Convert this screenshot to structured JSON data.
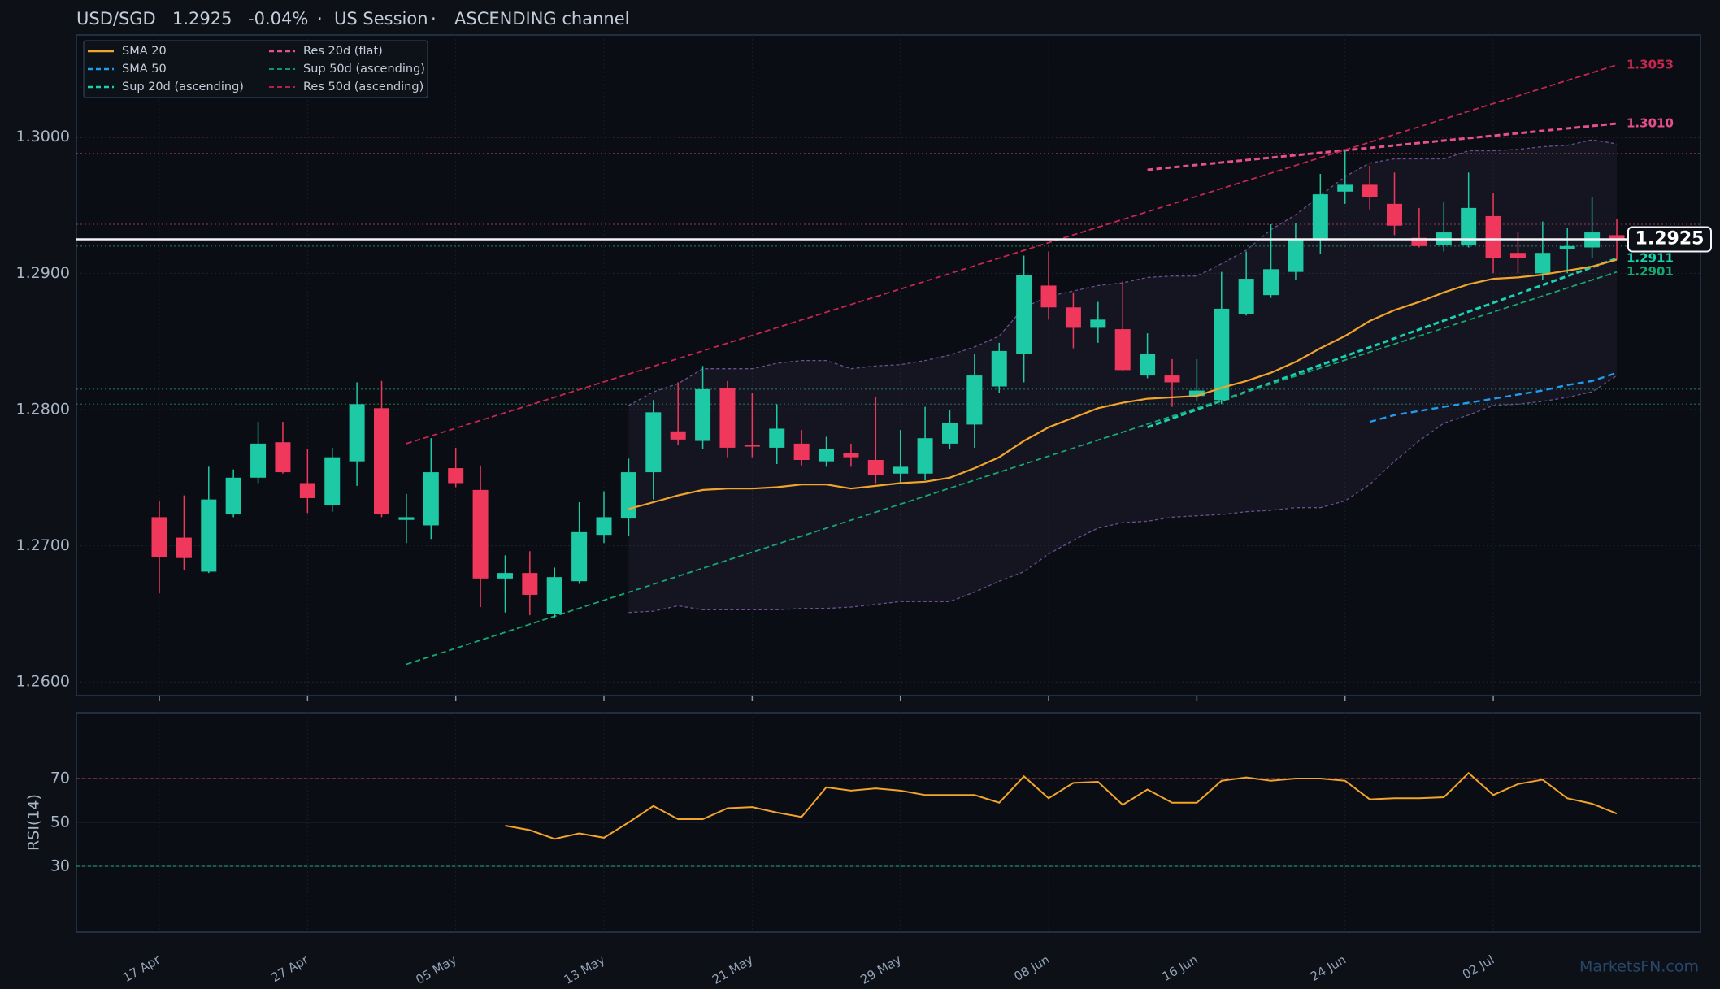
{
  "chart_data": {
    "type": "candlestick",
    "header": {
      "symbol": "USD/SGD",
      "change": "-0.04%",
      "session": "US Session",
      "channel": "ASCENDING channel",
      "separator": "·"
    },
    "last_price": 1.2925,
    "categories": [
      "17 Apr",
      null,
      null,
      null,
      null,
      null,
      "27 Apr",
      null,
      null,
      null,
      null,
      null,
      "05 May",
      null,
      null,
      null,
      null,
      null,
      "13 May",
      null,
      null,
      null,
      null,
      null,
      "21 May",
      null,
      null,
      null,
      null,
      null,
      "29 May",
      null,
      null,
      null,
      null,
      null,
      "08 Jun",
      null,
      null,
      null,
      null,
      null,
      "16 Jun",
      null,
      null,
      null,
      null,
      null,
      "24 Jun",
      null,
      null,
      null,
      null,
      null,
      "02 Jul",
      null,
      null,
      null,
      null,
      null
    ],
    "open": [
      1.2721,
      1.2706,
      1.2681,
      1.2723,
      1.275,
      1.2776,
      1.2746,
      1.273,
      1.2762,
      1.2801,
      1.2719,
      1.2715,
      1.2757,
      1.2741,
      1.2676,
      1.268,
      1.265,
      1.2674,
      1.2708,
      1.272,
      1.2754,
      1.2784,
      1.2777,
      1.2816,
      1.2774,
      1.2772,
      1.2775,
      1.2762,
      1.2768,
      1.2763,
      1.2753,
      1.2753,
      1.2775,
      1.2789,
      1.2817,
      1.2841,
      1.2891,
      1.2875,
      1.286,
      1.2859,
      1.2825,
      1.2825,
      1.281,
      1.2807,
      1.287,
      1.2884,
      1.2901,
      1.2925,
      1.296,
      1.2965,
      1.2951,
      1.2926,
      1.2921,
      1.2921,
      1.2942,
      1.2915,
      1.29,
      1.2918,
      1.2919,
      1.2928
    ],
    "high": [
      1.2733,
      1.2737,
      1.2758,
      1.2756,
      1.2791,
      1.2791,
      1.2771,
      1.2772,
      1.282,
      1.2821,
      1.2738,
      1.2779,
      1.2772,
      1.2759,
      1.2693,
      1.2696,
      1.2684,
      1.2732,
      1.274,
      1.2764,
      1.2807,
      1.282,
      1.2832,
      1.2821,
      1.2812,
      1.2804,
      1.2785,
      1.278,
      1.2775,
      1.2809,
      1.2785,
      1.2802,
      1.28,
      1.2841,
      1.2849,
      1.2913,
      1.2916,
      1.2886,
      1.2879,
      1.2894,
      1.2856,
      1.2837,
      1.2837,
      1.2901,
      1.2916,
      1.2936,
      1.2937,
      1.2973,
      1.299,
      1.2979,
      1.2974,
      1.2948,
      1.2952,
      1.2974,
      1.2959,
      1.293,
      1.2938,
      1.2933,
      1.2956,
      1.294
    ],
    "low": [
      1.2665,
      1.2682,
      1.268,
      1.2721,
      1.2746,
      1.2753,
      1.2724,
      1.2725,
      1.2744,
      1.2721,
      1.2702,
      1.2705,
      1.2743,
      1.2655,
      1.2651,
      1.2649,
      1.2647,
      1.2672,
      1.2702,
      1.2707,
      1.2734,
      1.2774,
      1.2771,
      1.2765,
      1.2765,
      1.276,
      1.2759,
      1.2758,
      1.2758,
      1.2746,
      1.2746,
      1.2748,
      1.2771,
      1.2772,
      1.2812,
      1.282,
      1.2866,
      1.2845,
      1.2849,
      1.2828,
      1.2823,
      1.2802,
      1.2806,
      1.2804,
      1.2869,
      1.2882,
      1.2895,
      1.2914,
      1.2951,
      1.2947,
      1.2928,
      1.2919,
      1.2916,
      1.2919,
      1.29,
      1.29,
      1.2895,
      1.29,
      1.2911,
      1.291
    ],
    "close": [
      1.2692,
      1.2691,
      1.2734,
      1.275,
      1.2775,
      1.2754,
      1.2735,
      1.2765,
      1.2804,
      1.2723,
      1.2721,
      1.2754,
      1.2746,
      1.2676,
      1.268,
      1.2664,
      1.2677,
      1.271,
      1.2721,
      1.2754,
      1.2798,
      1.2778,
      1.2815,
      1.2772,
      1.2773,
      1.2786,
      1.2763,
      1.2771,
      1.2765,
      1.2752,
      1.2758,
      1.2779,
      1.279,
      1.2825,
      1.2843,
      1.2899,
      1.2875,
      1.286,
      1.2866,
      1.2829,
      1.2841,
      1.282,
      1.2814,
      1.2874,
      1.2896,
      1.2903,
      1.2925,
      1.2958,
      1.2965,
      1.2956,
      1.2935,
      1.292,
      1.293,
      1.2948,
      1.2911,
      1.2911,
      1.2915,
      1.292,
      1.293,
      1.2925
    ],
    "up_color": "#1ec9a6",
    "down_color": "#f0385c",
    "ylim": [
      1.259,
      1.3075
    ],
    "yticks": [
      {
        "value": 1.26,
        "label": "1.2600"
      },
      {
        "value": 1.27,
        "label": "1.2700"
      },
      {
        "value": 1.28,
        "label": "1.2800"
      },
      {
        "value": 1.29,
        "label": "1.2900"
      },
      {
        "value": 1.3,
        "label": "1.3000"
      }
    ],
    "grid": true,
    "legend": "upper left",
    "series": [
      {
        "name": "SMA 20",
        "color": "#f2a52b",
        "style": "solid",
        "width": 2.2,
        "values": [
          null,
          null,
          null,
          null,
          null,
          null,
          null,
          null,
          null,
          null,
          null,
          null,
          null,
          null,
          null,
          null,
          null,
          null,
          null,
          1.2727,
          1.2732,
          1.2737,
          1.2741,
          1.2742,
          1.2742,
          1.2743,
          1.2745,
          1.2745,
          1.2742,
          1.2744,
          1.2746,
          1.2747,
          1.275,
          1.2757,
          1.2765,
          1.2777,
          1.2787,
          1.2794,
          1.2801,
          1.2805,
          1.2808,
          1.2809,
          1.281,
          1.2816,
          1.2821,
          1.2827,
          1.2835,
          1.2845,
          1.2854,
          1.2865,
          1.2873,
          1.2879,
          1.2886,
          1.2892,
          1.2896,
          1.2897,
          1.2899,
          1.2902,
          1.2905,
          1.291
        ]
      },
      {
        "name": "SMA 50",
        "color": "#1f9cf0",
        "style": "dashed",
        "width": 2.4,
        "values": [
          null,
          null,
          null,
          null,
          null,
          null,
          null,
          null,
          null,
          null,
          null,
          null,
          null,
          null,
          null,
          null,
          null,
          null,
          null,
          null,
          null,
          null,
          null,
          null,
          null,
          null,
          null,
          null,
          null,
          null,
          null,
          null,
          null,
          null,
          null,
          null,
          null,
          null,
          null,
          null,
          null,
          null,
          null,
          null,
          null,
          null,
          null,
          null,
          null,
          1.2791,
          1.2796,
          1.2799,
          1.2802,
          1.2805,
          1.2808,
          1.2811,
          1.2814,
          1.2818,
          1.2821,
          1.2827
        ]
      }
    ],
    "band": {
      "color": "#6c4f8f",
      "upper": [
        null,
        null,
        null,
        null,
        null,
        null,
        null,
        null,
        null,
        null,
        null,
        null,
        null,
        null,
        null,
        null,
        null,
        null,
        null,
        1.2803,
        1.2813,
        1.2819,
        1.283,
        1.283,
        1.283,
        1.2834,
        1.2836,
        1.2836,
        1.283,
        1.2832,
        1.2833,
        1.2836,
        1.284,
        1.2846,
        1.2854,
        1.2875,
        1.2883,
        1.2887,
        1.2891,
        1.2893,
        1.2897,
        1.2898,
        1.2898,
        1.2907,
        1.2917,
        1.2932,
        1.2943,
        1.2957,
        1.2971,
        1.2981,
        1.2984,
        1.2984,
        1.2984,
        1.299,
        1.299,
        1.2991,
        1.2993,
        1.2994,
        1.2998,
        1.2995
      ],
      "lower": [
        null,
        null,
        null,
        null,
        null,
        null,
        null,
        null,
        null,
        null,
        null,
        null,
        null,
        null,
        null,
        null,
        null,
        null,
        null,
        1.2651,
        1.2652,
        1.2656,
        1.2653,
        1.2653,
        1.2653,
        1.2653,
        1.2654,
        1.2654,
        1.2655,
        1.2657,
        1.2659,
        1.2659,
        1.2659,
        1.2666,
        1.2674,
        1.2681,
        1.2694,
        1.2704,
        1.2713,
        1.2717,
        1.2718,
        1.2721,
        1.2722,
        1.2723,
        1.2725,
        1.2726,
        1.2728,
        1.2728,
        1.2733,
        1.2745,
        1.2762,
        1.2777,
        1.279,
        1.2796,
        1.2803,
        1.2804,
        1.2806,
        1.2809,
        1.2813,
        1.2825
      ]
    },
    "lines": [
      {
        "name": "Sup 20d (ascending)",
        "color": "#19d2b0",
        "width": 3,
        "x": [
          40,
          59
        ],
        "values": [
          1.2787,
          1.2911
        ],
        "end_label": "1.2911"
      },
      {
        "name": "Res 20d (flat)",
        "color": "#e8508c",
        "width": 3,
        "x": [
          40,
          59
        ],
        "values": [
          1.2976,
          1.301
        ],
        "end_label": "1.3010"
      },
      {
        "name": "Sup 50d (ascending)",
        "color": "#15a872",
        "width": 1.8,
        "x": [
          10,
          59
        ],
        "values": [
          1.2613,
          1.2901
        ],
        "end_label": "1.2901"
      },
      {
        "name": "Res 50d (ascending)",
        "color": "#c8264e",
        "width": 1.8,
        "x": [
          10,
          59
        ],
        "values": [
          1.2775,
          1.3053
        ],
        "end_label": "1.3053"
      }
    ],
    "levels": {
      "resistance": {
        "color": "#a8354f",
        "values": [
          1.3,
          1.2988,
          1.2936
        ]
      },
      "support": {
        "color": "#1e7a55",
        "values": [
          1.292,
          1.2815,
          1.2804
        ]
      }
    },
    "watermark": "MarketsFN.com",
    "rsi": {
      "type": "line",
      "ylabel": "RSI(14)",
      "ylim": [
        0,
        100
      ],
      "yticks": [
        30,
        50,
        70
      ],
      "color": "#f2a52b",
      "bands": [
        {
          "value": 70,
          "color": "#a8354f"
        },
        {
          "value": 30,
          "color": "#1e8a70"
        }
      ],
      "values": [
        null,
        null,
        null,
        null,
        null,
        null,
        null,
        null,
        null,
        null,
        null,
        null,
        null,
        null,
        48.5,
        46.5,
        42.5,
        45,
        43,
        50,
        57.5,
        51.5,
        51.5,
        56.5,
        57,
        54.5,
        52.5,
        66,
        64.5,
        65.5,
        64.5,
        62.5,
        62.5,
        62.5,
        59,
        71,
        61,
        68,
        68.5,
        58,
        65,
        59,
        59,
        69,
        70.5,
        69,
        70,
        70,
        69,
        60.5,
        61,
        61,
        61.5,
        72.5,
        62.5,
        67.5,
        69.5,
        61,
        58.5,
        54
      ]
    }
  }
}
